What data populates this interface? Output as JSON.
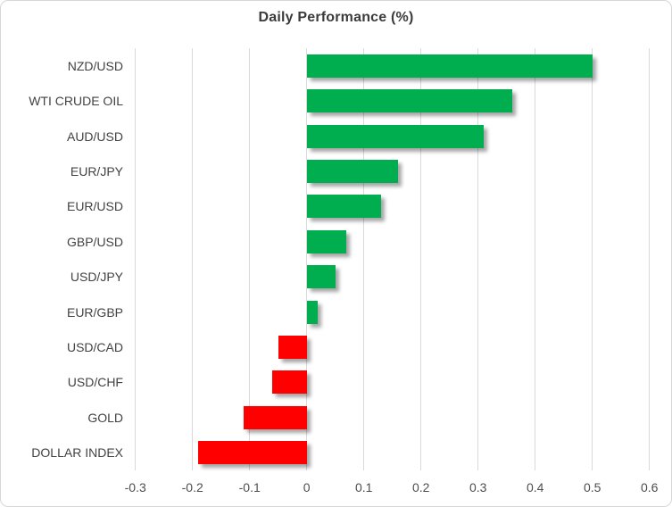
{
  "chart_data": {
    "type": "bar",
    "orientation": "horizontal",
    "title": "Daily Performance (%)",
    "categories": [
      "NZD/USD",
      "WTI CRUDE OIL",
      "AUD/USD",
      "EUR/JPY",
      "EUR/USD",
      "GBP/USD",
      "USD/JPY",
      "EUR/GBP",
      "USD/CAD",
      "USD/CHF",
      "GOLD",
      "DOLLAR INDEX"
    ],
    "values": [
      0.5,
      0.36,
      0.31,
      0.16,
      0.13,
      0.07,
      0.05,
      0.02,
      -0.05,
      -0.06,
      -0.11,
      -0.19
    ],
    "xlabel": "",
    "ylabel": "",
    "xlim": [
      -0.3,
      0.6
    ],
    "xticks": [
      -0.3,
      -0.2,
      -0.1,
      0,
      0.1,
      0.2,
      0.3,
      0.4,
      0.5,
      0.6
    ],
    "xtick_labels": [
      "-0.3",
      "-0.2",
      "-0.1",
      "0",
      "0.1",
      "0.2",
      "0.3",
      "0.4",
      "0.5",
      "0.6"
    ],
    "grid": true,
    "legend": "none",
    "positive_color": "#00AE50",
    "negative_color": "#FF0000",
    "gridline_color": "#D9D9D9",
    "title_color": "#3B3B3B",
    "label_color": "#424242",
    "axis_label_color": "#4E4E4E",
    "background_color": "#FFFFFF"
  }
}
